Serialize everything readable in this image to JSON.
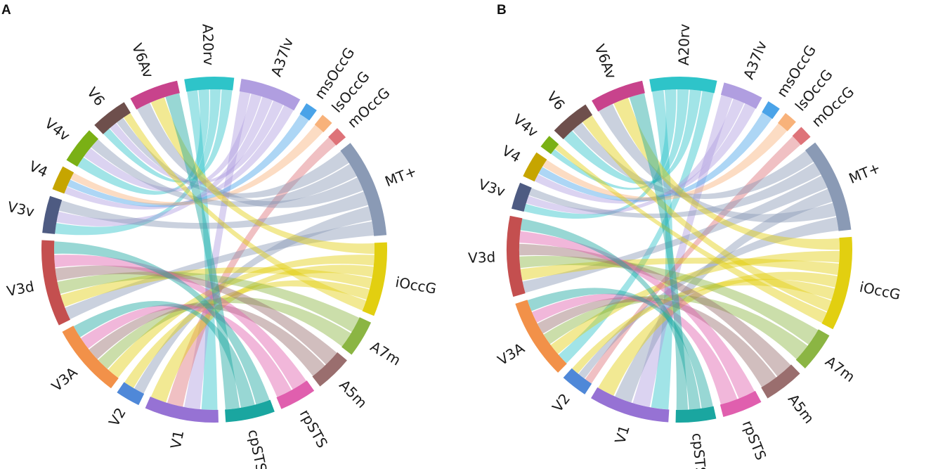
{
  "figure": {
    "panel_a_label": "A",
    "panel_b_label": "B"
  },
  "chart_data": [
    {
      "type": "chord",
      "panel": "A",
      "nodes": [
        {
          "name": "A20rv",
          "color": "#2ec4c9",
          "size": 4
        },
        {
          "name": "A37lv",
          "color": "#b09ee0",
          "size": 5
        },
        {
          "name": "msOccG",
          "color": "#4aa3e8",
          "size": 1
        },
        {
          "name": "lsOccG",
          "color": "#f8b27a",
          "size": 1
        },
        {
          "name": "mOccG",
          "color": "#de7379",
          "size": 1
        },
        {
          "name": "MT+",
          "color": "#8a9ab5",
          "size": 8
        },
        {
          "name": "iOccG",
          "color": "#e2cf10",
          "size": 6
        },
        {
          "name": "A7m",
          "color": "#8bb543",
          "size": 3
        },
        {
          "name": "A5m",
          "color": "#9a6e6e",
          "size": 3
        },
        {
          "name": "rpSTS",
          "color": "#e05fae",
          "size": 3
        },
        {
          "name": "cpSTS",
          "color": "#1aa6a0",
          "size": 4
        },
        {
          "name": "V1",
          "color": "#9672d4",
          "size": 6
        },
        {
          "name": "V2",
          "color": "#4f88d8",
          "size": 2
        },
        {
          "name": "V3A",
          "color": "#f29149",
          "size": 6
        },
        {
          "name": "V3d",
          "color": "#c44f4f",
          "size": 7
        },
        {
          "name": "V3v",
          "color": "#4e5b82",
          "size": 3
        },
        {
          "name": "V4",
          "color": "#c6a500",
          "size": 2
        },
        {
          "name": "V4v",
          "color": "#7ab015",
          "size": 3
        },
        {
          "name": "V6",
          "color": "#6e4f4c",
          "size": 3
        },
        {
          "name": "V6Av",
          "color": "#c8438c",
          "size": 4
        }
      ],
      "links": [
        [
          "A20rv",
          "V1"
        ],
        [
          "A20rv",
          "V4v"
        ],
        [
          "A20rv",
          "V3v"
        ],
        [
          "A20rv",
          "V6"
        ],
        [
          "A37lv",
          "V1"
        ],
        [
          "A37lv",
          "V4v"
        ],
        [
          "A37lv",
          "V3v"
        ],
        [
          "A37lv",
          "V6"
        ],
        [
          "A37lv",
          "V4"
        ],
        [
          "msOccG",
          "V4"
        ],
        [
          "lsOccG",
          "V4"
        ],
        [
          "mOccG",
          "V1"
        ],
        [
          "MT+",
          "V6"
        ],
        [
          "MT+",
          "V4v"
        ],
        [
          "MT+",
          "V6Av"
        ],
        [
          "MT+",
          "V3v"
        ],
        [
          "MT+",
          "V2"
        ],
        [
          "MT+",
          "V3d"
        ],
        [
          "iOccG",
          "V6Av"
        ],
        [
          "iOccG",
          "V3A"
        ],
        [
          "iOccG",
          "V1"
        ],
        [
          "iOccG",
          "V3d"
        ],
        [
          "iOccG",
          "V2"
        ],
        [
          "iOccG",
          "V6"
        ],
        [
          "A7m",
          "V3d"
        ],
        [
          "A7m",
          "V3A"
        ],
        [
          "A5m",
          "V3d"
        ],
        [
          "A5m",
          "V3A"
        ],
        [
          "rpSTS",
          "V3d"
        ],
        [
          "rpSTS",
          "V3A"
        ],
        [
          "cpSTS",
          "V3d"
        ],
        [
          "cpSTS",
          "V3A"
        ],
        [
          "cpSTS",
          "V6Av"
        ]
      ]
    },
    {
      "type": "chord",
      "panel": "B",
      "nodes": [
        {
          "name": "A20rv",
          "color": "#2ec4c9",
          "size": 5
        },
        {
          "name": "A37lv",
          "color": "#b09ee0",
          "size": 3
        },
        {
          "name": "msOccG",
          "color": "#4aa3e8",
          "size": 1
        },
        {
          "name": "lsOccG",
          "color": "#f8b27a",
          "size": 1
        },
        {
          "name": "mOccG",
          "color": "#de7379",
          "size": 1
        },
        {
          "name": "MT+",
          "color": "#8a9ab5",
          "size": 7
        },
        {
          "name": "iOccG",
          "color": "#e2cf10",
          "size": 7
        },
        {
          "name": "A7m",
          "color": "#8bb543",
          "size": 3
        },
        {
          "name": "A5m",
          "color": "#9a6e6e",
          "size": 3
        },
        {
          "name": "rpSTS",
          "color": "#e05fae",
          "size": 3
        },
        {
          "name": "cpSTS",
          "color": "#1aa6a0",
          "size": 3
        },
        {
          "name": "V1",
          "color": "#9672d4",
          "size": 6
        },
        {
          "name": "V2",
          "color": "#4f88d8",
          "size": 2
        },
        {
          "name": "V3A",
          "color": "#f29149",
          "size": 6
        },
        {
          "name": "V3d",
          "color": "#c44f4f",
          "size": 6
        },
        {
          "name": "V3v",
          "color": "#4e5b82",
          "size": 2
        },
        {
          "name": "V4",
          "color": "#c6a500",
          "size": 2
        },
        {
          "name": "V4v",
          "color": "#7ab015",
          "size": 1
        },
        {
          "name": "V6",
          "color": "#6e4f4c",
          "size": 3
        },
        {
          "name": "V6Av",
          "color": "#c8438c",
          "size": 4
        }
      ],
      "links": [
        [
          "A20rv",
          "V1"
        ],
        [
          "A20rv",
          "V3v"
        ],
        [
          "A20rv",
          "V4v"
        ],
        [
          "A20rv",
          "V6"
        ],
        [
          "A20rv",
          "V3A"
        ],
        [
          "A37lv",
          "V1"
        ],
        [
          "A37lv",
          "V3v"
        ],
        [
          "A37lv",
          "V4"
        ],
        [
          "msOccG",
          "V4"
        ],
        [
          "lsOccG",
          "V4"
        ],
        [
          "mOccG",
          "V2"
        ],
        [
          "MT+",
          "V6"
        ],
        [
          "MT+",
          "V3v"
        ],
        [
          "MT+",
          "V3d"
        ],
        [
          "MT+",
          "V1"
        ],
        [
          "MT+",
          "V6Av"
        ],
        [
          "MT+",
          "V2"
        ],
        [
          "iOccG",
          "V6Av"
        ],
        [
          "iOccG",
          "V3A"
        ],
        [
          "iOccG",
          "V3d"
        ],
        [
          "iOccG",
          "V1"
        ],
        [
          "iOccG",
          "V2"
        ],
        [
          "iOccG",
          "V6"
        ],
        [
          "iOccG",
          "V4v"
        ],
        [
          "A7m",
          "V3d"
        ],
        [
          "A7m",
          "V3A"
        ],
        [
          "A5m",
          "V3d"
        ],
        [
          "A5m",
          "V3A"
        ],
        [
          "rpSTS",
          "V3d"
        ],
        [
          "rpSTS",
          "V3A"
        ],
        [
          "cpSTS",
          "V3A"
        ],
        [
          "cpSTS",
          "V3d"
        ],
        [
          "cpSTS",
          "V6Av"
        ]
      ]
    }
  ]
}
